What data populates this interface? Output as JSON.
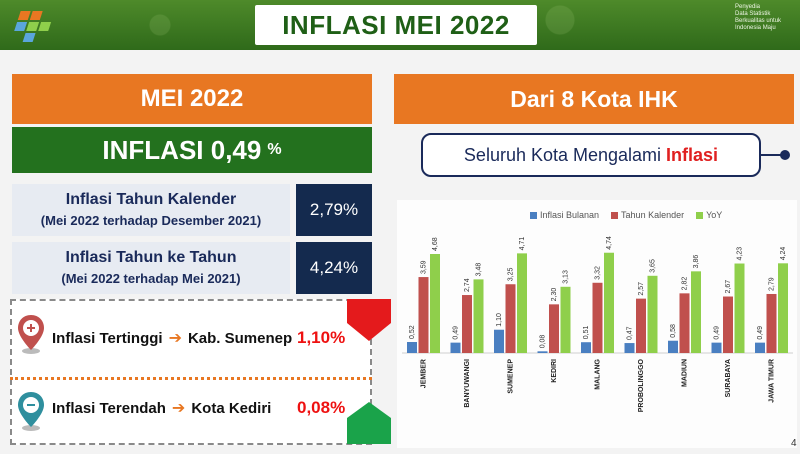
{
  "header": {
    "title": "INFLASI MEI 2022",
    "tagline": [
      "Penyedia",
      "Data Statistik",
      "Berkualitas untuk",
      "Indonesia Maju"
    ]
  },
  "left": {
    "month_label": "MEI 2022",
    "inflasi_label": "INFLASI 0,49",
    "inflasi_unit": "%",
    "tahun_kalender": {
      "label": "Inflasi Tahun Kalender",
      "sub": "(Mei 2022 terhadap Desember 2021)",
      "value": "2,79%"
    },
    "tahun_ke_tahun": {
      "label": "Inflasi Tahun ke Tahun",
      "sub": "(Mei 2022 terhadap Mei 2021)",
      "value": "4,24%"
    },
    "tertinggi": {
      "label": "Inflasi Tertinggi",
      "city": "Kab. Sumenep",
      "value": "1,10%"
    },
    "terendah": {
      "label": "Inflasi Terendah",
      "city": "Kota Kediri",
      "value": "0,08%"
    }
  },
  "right": {
    "heading": "Dari 8 Kota IHK",
    "statement": "Seluruh Kota Mengalami",
    "statement_highlight": "Inflasi"
  },
  "colors": {
    "orange": "#e87722",
    "green": "#23711e",
    "navy": "#142a4e",
    "series_blue": "#4a7fc1",
    "series_red": "#c0504d",
    "series_green": "#8fcf4b"
  },
  "page_number": "4",
  "chart_data": {
    "type": "bar",
    "categories": [
      "JEMBER",
      "BANYUWANGI",
      "SUMENEP",
      "KEDIRI",
      "MALANG",
      "PROBOLINGGO",
      "MADIUN",
      "SURABAYA",
      "JAWA TIMUR"
    ],
    "series": [
      {
        "name": "Inflasi Bulanan",
        "values": [
          0.52,
          0.49,
          1.1,
          0.08,
          0.51,
          0.47,
          0.58,
          0.49,
          0.49
        ],
        "labels": [
          "0,52",
          "0,49",
          "1,10",
          "0,08",
          "0,51",
          "0,47",
          "0,58",
          "0,49",
          "0,49"
        ]
      },
      {
        "name": "Tahun Kalender",
        "values": [
          3.59,
          2.74,
          3.25,
          2.3,
          3.32,
          2.57,
          2.82,
          2.67,
          2.79
        ],
        "labels": [
          "3,59",
          "2,74",
          "3,25",
          "2,30",
          "3,32",
          "2,57",
          "2,82",
          "2,67",
          "2,79"
        ]
      },
      {
        "name": "YoY",
        "values": [
          4.68,
          3.48,
          4.71,
          3.13,
          4.74,
          3.65,
          3.86,
          4.23,
          4.24
        ],
        "labels": [
          "4,68",
          "3,48",
          "4,71",
          "3,13",
          "4,74",
          "3,65",
          "3,86",
          "4,23",
          "4,24"
        ]
      }
    ],
    "legend_position": "top-center",
    "grid": false
  }
}
